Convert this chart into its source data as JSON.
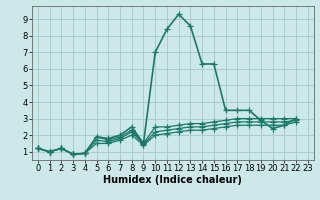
{
  "title": "",
  "xlabel": "Humidex (Indice chaleur)",
  "bg_color": "#cce8e8",
  "grid_color": "#aacccc",
  "line_color": "#1a7a6a",
  "xlim": [
    -0.5,
    23.5
  ],
  "ylim": [
    0.5,
    9.8
  ],
  "xticks": [
    0,
    1,
    2,
    3,
    4,
    5,
    6,
    7,
    8,
    9,
    10,
    11,
    12,
    13,
    14,
    15,
    16,
    17,
    18,
    19,
    20,
    21,
    22,
    23
  ],
  "yticks": [
    1,
    2,
    3,
    4,
    5,
    6,
    7,
    8,
    9
  ],
  "series": [
    [
      1.2,
      1.0,
      1.2,
      0.85,
      0.9,
      1.9,
      1.8,
      2.0,
      2.5,
      1.5,
      7.0,
      8.4,
      9.3,
      8.6,
      6.3,
      6.3,
      3.5,
      3.5,
      3.5,
      2.9,
      2.4,
      2.6,
      3.0
    ],
    [
      1.2,
      1.0,
      1.2,
      0.85,
      0.9,
      1.9,
      1.7,
      1.9,
      2.3,
      1.5,
      2.5,
      2.5,
      2.6,
      2.7,
      2.7,
      2.8,
      2.9,
      3.0,
      3.0,
      3.0,
      3.0,
      3.0,
      3.0
    ],
    [
      1.2,
      1.0,
      1.2,
      0.85,
      0.9,
      1.7,
      1.6,
      1.8,
      2.2,
      1.45,
      2.2,
      2.3,
      2.4,
      2.5,
      2.5,
      2.6,
      2.7,
      2.8,
      2.8,
      2.8,
      2.8,
      2.8,
      2.9
    ],
    [
      1.2,
      1.0,
      1.2,
      0.85,
      0.9,
      1.5,
      1.5,
      1.7,
      2.0,
      1.4,
      2.0,
      2.1,
      2.2,
      2.3,
      2.3,
      2.4,
      2.5,
      2.6,
      2.6,
      2.6,
      2.6,
      2.6,
      2.8
    ]
  ],
  "x_series": [
    0,
    1,
    2,
    3,
    4,
    5,
    6,
    7,
    8,
    9,
    10,
    11,
    12,
    13,
    14,
    15,
    16,
    17,
    18,
    19,
    20,
    21,
    22
  ],
  "tick_fontsize": 6,
  "xlabel_fontsize": 7,
  "marker_size": 4,
  "linewidth": 1.0
}
